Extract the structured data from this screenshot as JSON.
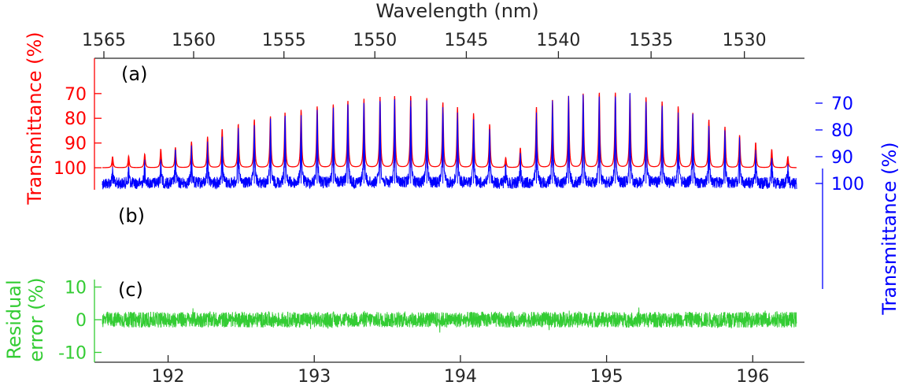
{
  "colors": {
    "red": "#ff0000",
    "blue": "#0000ff",
    "green": "#33cc33",
    "axis": "#262626"
  },
  "chart_data": {
    "type": "line",
    "top_axis": {
      "label": "Wavelength (nm)",
      "ticks": [
        1565,
        1560,
        1555,
        1550,
        1545,
        1540,
        1535,
        1530
      ]
    },
    "bottom_axis": {
      "ticks": [
        192,
        193,
        194,
        195,
        196
      ],
      "range": [
        191.55,
        196.3
      ]
    },
    "panels": [
      {
        "id": "a",
        "label": "(a)",
        "ylabel": "Transmittance (%)",
        "yticks": [
          70,
          80,
          90,
          100
        ],
        "yrange": [
          64,
          100
        ],
        "reversed": true,
        "color": "red",
        "series": [
          {
            "kind": "absorption_comb",
            "peaks_x": [
              191.62,
              191.73,
              191.84,
              191.95,
              192.05,
              192.16,
              192.27,
              192.37,
              192.48,
              192.59,
              192.7,
              192.8,
              192.91,
              193.02,
              193.13,
              193.23,
              193.34,
              193.45,
              193.55,
              193.66,
              193.77,
              193.88,
              193.98,
              194.09,
              194.2,
              194.31,
              194.41,
              194.52,
              194.63,
              194.74,
              194.84,
              194.95,
              195.06,
              195.16,
              195.27,
              195.38,
              195.49,
              195.59,
              195.7,
              195.81,
              195.91,
              196.02,
              196.13,
              196.24
            ],
            "peaks_y": [
              95.5,
              95.3,
              94.5,
              92.5,
              91.8,
              89.5,
              87.5,
              84.4,
              82.4,
              80.5,
              79.2,
              77.8,
              76.6,
              75.2,
              74.4,
              73.0,
              72.2,
              71.5,
              71.0,
              71.0,
              71.8,
              73.6,
              75.6,
              78.0,
              82.4,
              96.0,
              92.0,
              75.5,
              72.7,
              71.1,
              70.0,
              69.7,
              69.6,
              70.3,
              71.6,
              73.2,
              75.2,
              77.8,
              80.6,
              83.5,
              86.8,
              89.8,
              92.6,
              95.5
            ]
          }
        ]
      },
      {
        "id": "b",
        "label": "(b)",
        "ylabel": "Transmittance (%)",
        "yticks": [
          70,
          80,
          90,
          100
        ],
        "yrange": [
          62,
          106
        ],
        "reversed": false,
        "color": "blue",
        "series": [
          {
            "kind": "absorption_comb_noisy",
            "baseline": 100,
            "noise": 2.2,
            "peaks_x": [
              191.62,
              191.73,
              191.84,
              191.95,
              192.05,
              192.16,
              192.27,
              192.37,
              192.48,
              192.59,
              192.7,
              192.8,
              192.91,
              193.02,
              193.13,
              193.23,
              193.34,
              193.45,
              193.55,
              193.66,
              193.77,
              193.88,
              193.98,
              194.09,
              194.2,
              194.31,
              194.41,
              194.52,
              194.63,
              194.74,
              194.84,
              194.95,
              195.06,
              195.16,
              195.27,
              195.38,
              195.49,
              195.59,
              195.7,
              195.81,
              195.91,
              196.02,
              196.13,
              196.24
            ],
            "peaks_y": [
              95.0,
              94.0,
              92.5,
              91.0,
              89.0,
              87.0,
              85.5,
              82.5,
              80.5,
              78.5,
              77.5,
              75.5,
              74.5,
              73.0,
              72.0,
              71.0,
              70.5,
              69.5,
              69.0,
              69.0,
              69.5,
              71.5,
              73.5,
              76.0,
              80.5,
              93.5,
              90.0,
              73.5,
              70.5,
              69.0,
              68.0,
              67.5,
              67.5,
              68.0,
              69.5,
              71.0,
              73.5,
              75.5,
              78.5,
              81.5,
              84.5,
              87.5,
              90.5,
              93.5
            ]
          }
        ]
      },
      {
        "id": "c",
        "label": "(c)",
        "ylabel_lines": [
          "Residual",
          "error (%)"
        ],
        "yticks": [
          -10,
          0,
          10
        ],
        "yrange": [
          -13.5,
          10
        ],
        "reversed": false,
        "color": "green",
        "series": [
          {
            "kind": "noise",
            "baseline": 0,
            "amplitude": 2.4
          }
        ]
      }
    ]
  }
}
